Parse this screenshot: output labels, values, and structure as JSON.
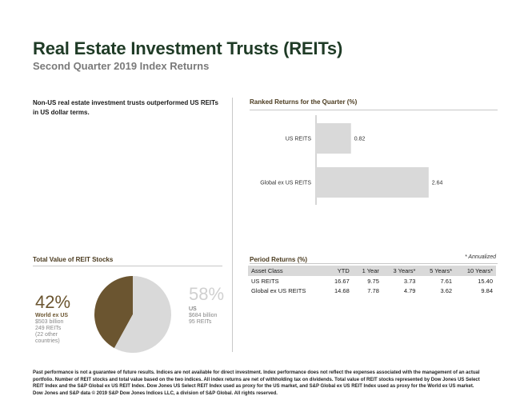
{
  "header": {
    "title": "Real Estate Investment Trusts (REITs)",
    "subtitle": "Second Quarter 2019 Index Returns"
  },
  "intro_text": "Non-US real estate investment trusts outperformed US REITs in US dollar terms.",
  "ranked": {
    "heading": "Ranked Returns for the Quarter (%)"
  },
  "chart_data": [
    {
      "type": "bar",
      "orientation": "horizontal",
      "title": "Ranked Returns for the Quarter (%)",
      "categories": [
        "US REITS",
        "Global ex US REITS"
      ],
      "values": [
        0.82,
        2.64
      ],
      "value_labels": [
        "0.82",
        "2.64"
      ],
      "xlim": [
        0,
        3.0
      ],
      "bar_color": "#d9d9d9"
    },
    {
      "type": "pie",
      "title": "Total Value of REIT Stocks",
      "slices": [
        {
          "name": "World ex US",
          "value": 42,
          "color": "#6b5530"
        },
        {
          "name": "US",
          "value": 58,
          "color": "#d9d9d9"
        }
      ]
    }
  ],
  "pie_labels": {
    "heading": "Total Value of REIT Stocks",
    "world": {
      "pct": "42%",
      "name": "World ex US",
      "line1": "$503 billion",
      "line2": "249 REITs",
      "line3": "(22 other",
      "line4": "countries)",
      "color": "#6b5530"
    },
    "us": {
      "pct": "58%",
      "name": "US",
      "line1": "$684 billion",
      "line2": "95 REITs",
      "color": "#d0d0d0"
    }
  },
  "period": {
    "heading": "Period Returns (%)",
    "annotation": "* Annualized",
    "columns": [
      "Asset Class",
      "YTD",
      "1 Year",
      "3 Years*",
      "5 Years*",
      "10 Years*"
    ],
    "rows": [
      [
        "US REITS",
        "16.67",
        "9.75",
        "3.73",
        "7.61",
        "15.40"
      ],
      [
        "Global ex US REITS",
        "14.68",
        "7.78",
        "4.79",
        "3.62",
        "9.84"
      ]
    ]
  },
  "footer_text": "Past performance is not a guarantee of future results. Indices are not available for direct investment. Index performance does not reflect the expenses associated with the management of an actual portfolio. Number of REIT stocks and total value based on the two indices. All index returns are net of withholding tax on dividends. Total value of REIT stocks represented by Dow Jones US Select REIT Index and the S&P Global ex US REIT Index. Dow Jones US Select REIT Index used as proxy for the US market, and S&P Global ex US REIT Index used as proxy for the World ex US market. Dow Jones and S&P data © 2019 S&P Dow Jones Indices LLC, a division of S&P Global. All rights reserved."
}
